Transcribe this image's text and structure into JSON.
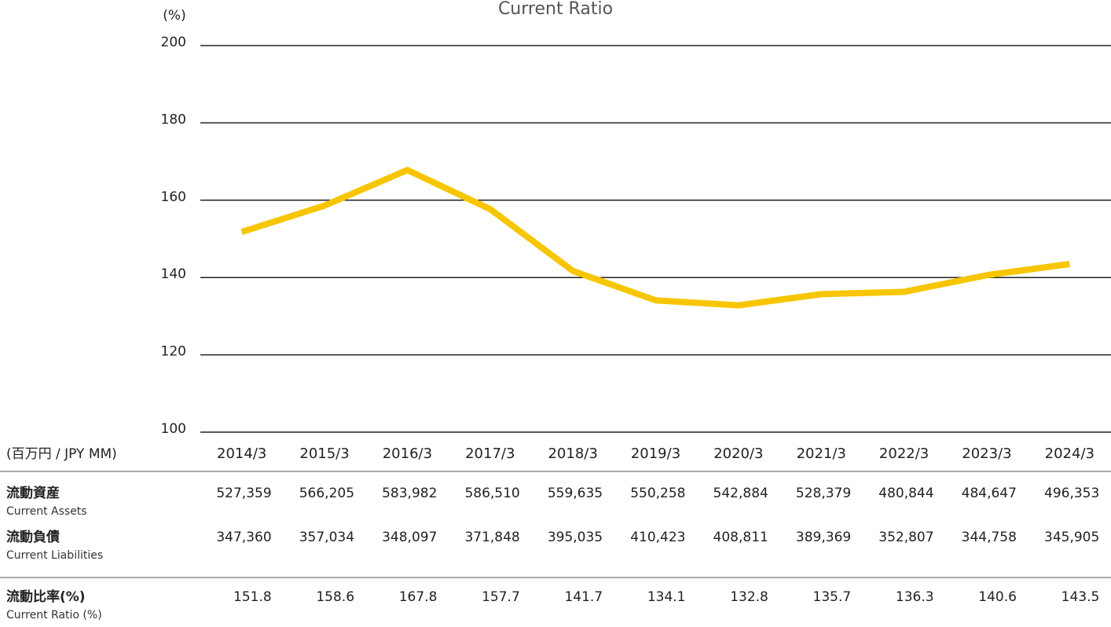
{
  "chart_data": {
    "type": "line",
    "title": "Current Ratio",
    "y_unit": "(%)",
    "categories": [
      "2014/3",
      "2015/3",
      "2016/3",
      "2017/3",
      "2018/3",
      "2019/3",
      "2020/3",
      "2021/3",
      "2022/3",
      "2023/3",
      "2024/3"
    ],
    "values": [
      151.8,
      158.6,
      167.8,
      157.7,
      141.7,
      134.1,
      132.8,
      135.7,
      136.3,
      140.6,
      143.5
    ],
    "color": "#f7c600",
    "ylim": [
      100,
      200
    ],
    "yticks": [
      100,
      120,
      140,
      160,
      180,
      200
    ],
    "grid": true
  },
  "table": {
    "header": "(百万円 / JPY MM)",
    "rows": [
      {
        "label": "流動資産",
        "sublabel": "Current Assets",
        "values": [
          "527,359",
          "566,205",
          "583,982",
          "586,510",
          "559,635",
          "550,258",
          "542,884",
          "528,379",
          "480,844",
          "484,647",
          "496,353"
        ]
      },
      {
        "label": "流動負債",
        "sublabel": "Current Liabilities",
        "values": [
          "347,360",
          "357,034",
          "348,097",
          "371,848",
          "395,035",
          "410,423",
          "408,811",
          "389,369",
          "352,807",
          "344,758",
          "345,905"
        ]
      },
      {
        "label": "流動比率(%)",
        "sublabel": "Current Ratio (%)"
      }
    ]
  }
}
